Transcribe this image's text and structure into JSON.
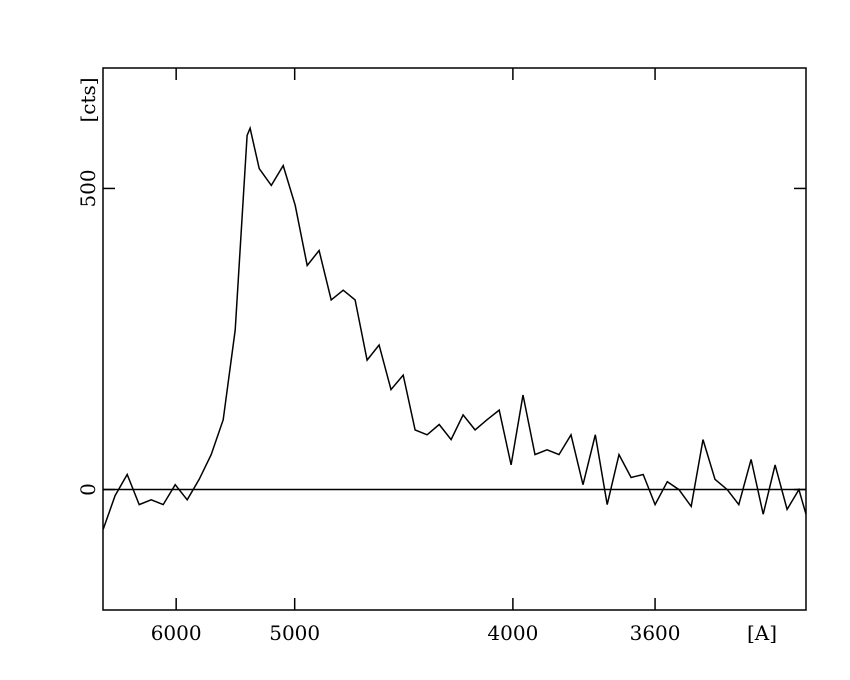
{
  "chart_data": {
    "type": "line",
    "x_label": "[A]",
    "y_label": "[cts]",
    "xscale": "inverse-square",
    "xlim": [
      7030,
      3284
    ],
    "xticks": [
      6000,
      5000,
      4000,
      3600
    ],
    "ylim": [
      -200,
      700
    ],
    "yticks": [
      0,
      500
    ],
    "zero_line": true,
    "series": [
      {
        "color": "#000000",
        "x": [
          7027,
          6822,
          6633,
          6459,
          6299,
          6150,
          6011,
          5881,
          5759,
          5644,
          5536,
          5434,
          5338,
          5315,
          5246,
          5158,
          5076,
          4997,
          4921,
          4850,
          4780,
          4714,
          4651,
          4590,
          4531,
          4475,
          4420,
          4368,
          4317,
          4268,
          4221,
          4175,
          4131,
          4088,
          4046,
          4006,
          3967,
          3929,
          3892,
          3856,
          3821,
          3787,
          3753,
          3721,
          3690,
          3659,
          3629,
          3600,
          3571,
          3544,
          3516,
          3490,
          3464,
          3438,
          3414,
          3389,
          3365,
          3342,
          3319,
          3297,
          3284
        ],
        "values": [
          -66,
          -10,
          25,
          -25,
          -17,
          -25,
          8,
          -17,
          17,
          58,
          116,
          265,
          588,
          600,
          533,
          505,
          538,
          472,
          372,
          397,
          315,
          331,
          315,
          215,
          240,
          166,
          190,
          99,
          91,
          108,
          83,
          124,
          99,
          116,
          132,
          41,
          157,
          58,
          66,
          58,
          91,
          8,
          91,
          -25,
          58,
          20,
          25,
          -25,
          13,
          0,
          -28,
          83,
          17,
          0,
          -25,
          50,
          -41,
          41,
          -33,
          0,
          -41
        ]
      }
    ]
  }
}
